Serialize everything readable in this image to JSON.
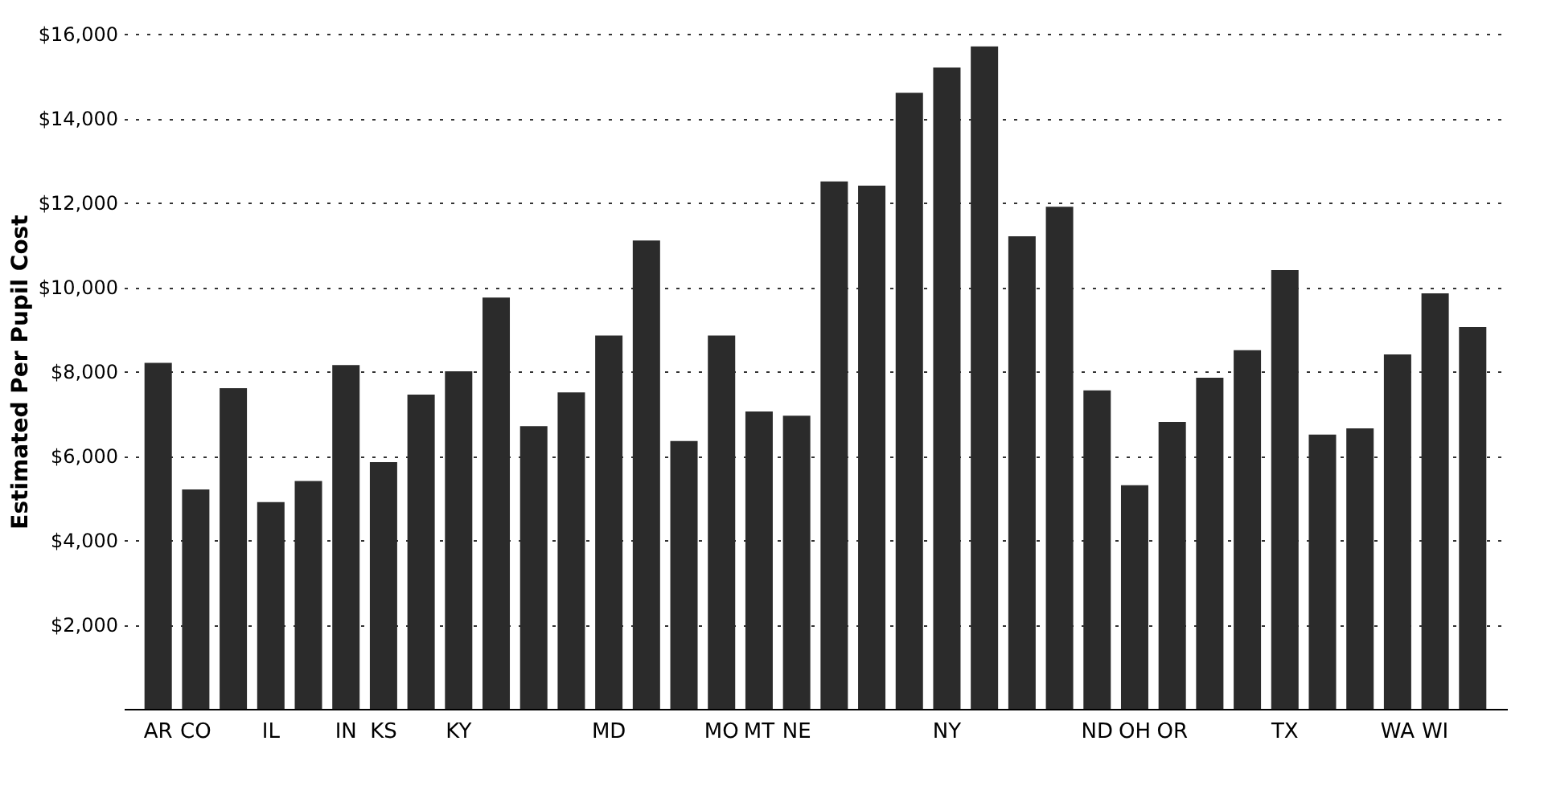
{
  "chart_data": {
    "type": "bar",
    "ylabel": "Estimated Per Pupil Cost",
    "categories": [
      "AR",
      "CO",
      null,
      "IL",
      null,
      "IN",
      "KS",
      null,
      "KY",
      null,
      null,
      null,
      "MD",
      null,
      null,
      "MO",
      "MT",
      "NE",
      null,
      null,
      null,
      "NY",
      null,
      null,
      null,
      "ND",
      "OH",
      "OR",
      null,
      null,
      "TX",
      null,
      null,
      "WA",
      "WI",
      null
    ],
    "values": [
      8200,
      5200,
      7600,
      4900,
      5400,
      8150,
      5850,
      7450,
      8000,
      9750,
      6700,
      7500,
      8850,
      11100,
      6350,
      8850,
      7050,
      6950,
      12500,
      12400,
      14600,
      15200,
      15700,
      11200,
      11900,
      7550,
      5300,
      6800,
      7850,
      8500,
      10400,
      6500,
      6650,
      8400,
      9850,
      9050
    ],
    "color": "#2b2b2b",
    "ylim": [
      0,
      16000
    ],
    "yticks": [
      {
        "value": 2000,
        "label": "$2,000"
      },
      {
        "value": 4000,
        "label": "$4,000"
      },
      {
        "value": 6000,
        "label": "$6,000"
      },
      {
        "value": 8000,
        "label": "$8,000"
      },
      {
        "value": 10000,
        "label": "$10,000"
      },
      {
        "value": 12000,
        "label": "$12,000"
      },
      {
        "value": 14000,
        "label": "$14,000"
      },
      {
        "value": 16000,
        "label": "$16,000"
      }
    ],
    "grid": "y"
  }
}
